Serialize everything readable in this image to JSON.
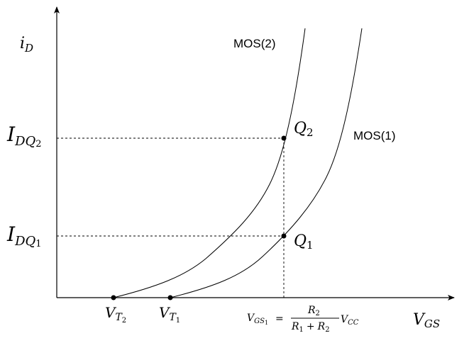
{
  "axes": {
    "y_label_main": "i",
    "y_label_sub": "D",
    "x_label_main": "V",
    "x_label_sub": "GS"
  },
  "curves": {
    "mos2_label": "MOS(2)",
    "mos1_label": "MOS(1)"
  },
  "levels": {
    "idq2_main": "I",
    "idq2_sub": "DQ",
    "idq2_subsub": "2",
    "idq1_main": "I",
    "idq1_sub": "DQ",
    "idq1_subsub": "1"
  },
  "points": {
    "q2_main": "Q",
    "q2_sub": "2",
    "q1_main": "Q",
    "q1_sub": "1"
  },
  "thresholds": {
    "vt2_main": "V",
    "vt2_sub": "T",
    "vt2_subsub": "2",
    "vt1_main": "V",
    "vt1_sub": "T",
    "vt1_subsub": "1"
  },
  "formula": {
    "lhs_main": "V",
    "lhs_sub": "GS",
    "lhs_subsub": "1",
    "equals": "=",
    "num_main": "R",
    "num_sub": "2",
    "den_r1_main": "R",
    "den_r1_sub": "1",
    "den_plus": "+",
    "den_r2_main": "R",
    "den_r2_sub": "2",
    "vcc_main": "V",
    "vcc_sub": "CC"
  }
}
